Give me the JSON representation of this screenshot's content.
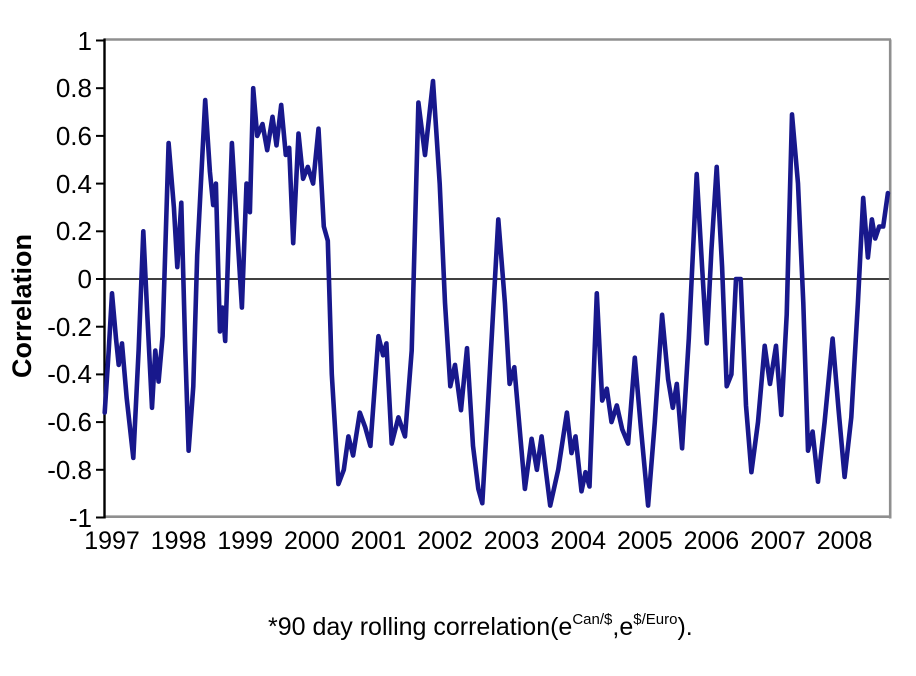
{
  "caption": {
    "part1": "*90 day rolling correlation(e",
    "sup1": "Can/$",
    "part2": ",e",
    "sup2": "$/Euro",
    "part3": ")."
  },
  "chart_data": {
    "type": "line",
    "title": "",
    "xlabel": "",
    "ylabel": "Correlation",
    "ylim": [
      -1,
      1
    ],
    "xlim_years": [
      1996.89,
      2008.68
    ],
    "grid": false,
    "zero_line": true,
    "legend": "none",
    "line_color": "#18188c",
    "border_color": "#8f8f8f",
    "axis_color": "#000000",
    "y_tick_labels": [
      "1",
      "0.8",
      "0.6",
      "0.4",
      "0.2",
      "0",
      "-0.2",
      "-0.4",
      "-0.6",
      "-0.8",
      "-1"
    ],
    "y_tick_values": [
      1,
      0.8,
      0.6,
      0.4,
      0.2,
      0,
      -0.2,
      -0.4,
      -0.6,
      -0.8,
      -1
    ],
    "x_tick_labels": [
      "1997",
      "1998",
      "1999",
      "2000",
      "2001",
      "2002",
      "2003",
      "2004",
      "2005",
      "2006",
      "2007",
      "2008"
    ],
    "x_tick_years": [
      1997,
      1998,
      1999,
      2000,
      2001,
      2002,
      2003,
      2004,
      2005,
      2006,
      2007,
      2008
    ],
    "series": [
      {
        "name": "90 day rolling correlation",
        "points": [
          [
            1996.89,
            -0.56
          ],
          [
            1996.95,
            -0.3
          ],
          [
            1997.0,
            -0.06
          ],
          [
            1997.06,
            -0.25
          ],
          [
            1997.1,
            -0.36
          ],
          [
            1997.15,
            -0.27
          ],
          [
            1997.22,
            -0.5
          ],
          [
            1997.32,
            -0.75
          ],
          [
            1997.4,
            -0.3
          ],
          [
            1997.47,
            0.2
          ],
          [
            1997.53,
            -0.15
          ],
          [
            1997.6,
            -0.54
          ],
          [
            1997.65,
            -0.3
          ],
          [
            1997.7,
            -0.43
          ],
          [
            1997.76,
            -0.24
          ],
          [
            1997.85,
            0.57
          ],
          [
            1997.93,
            0.3
          ],
          [
            1997.98,
            0.05
          ],
          [
            1998.04,
            0.32
          ],
          [
            1998.1,
            -0.3
          ],
          [
            1998.15,
            -0.72
          ],
          [
            1998.22,
            -0.45
          ],
          [
            1998.28,
            0.1
          ],
          [
            1998.4,
            0.75
          ],
          [
            1998.47,
            0.45
          ],
          [
            1998.52,
            0.31
          ],
          [
            1998.56,
            0.4
          ],
          [
            1998.62,
            -0.22
          ],
          [
            1998.66,
            -0.12
          ],
          [
            1998.7,
            -0.26
          ],
          [
            1998.8,
            0.57
          ],
          [
            1998.88,
            0.2
          ],
          [
            1998.95,
            -0.12
          ],
          [
            1999.02,
            0.4
          ],
          [
            1999.07,
            0.28
          ],
          [
            1999.12,
            0.8
          ],
          [
            1999.18,
            0.6
          ],
          [
            1999.26,
            0.65
          ],
          [
            1999.33,
            0.54
          ],
          [
            1999.41,
            0.68
          ],
          [
            1999.47,
            0.56
          ],
          [
            1999.54,
            0.73
          ],
          [
            1999.61,
            0.52
          ],
          [
            1999.66,
            0.55
          ],
          [
            1999.72,
            0.15
          ],
          [
            1999.8,
            0.61
          ],
          [
            1999.87,
            0.42
          ],
          [
            1999.94,
            0.47
          ],
          [
            2000.02,
            0.4
          ],
          [
            2000.1,
            0.63
          ],
          [
            2000.18,
            0.22
          ],
          [
            2000.24,
            0.16
          ],
          [
            2000.3,
            -0.4
          ],
          [
            2000.4,
            -0.86
          ],
          [
            2000.48,
            -0.8
          ],
          [
            2000.55,
            -0.66
          ],
          [
            2000.62,
            -0.74
          ],
          [
            2000.72,
            -0.56
          ],
          [
            2000.8,
            -0.62
          ],
          [
            2000.88,
            -0.7
          ],
          [
            2001.0,
            -0.24
          ],
          [
            2001.07,
            -0.32
          ],
          [
            2001.12,
            -0.27
          ],
          [
            2001.2,
            -0.69
          ],
          [
            2001.3,
            -0.58
          ],
          [
            2001.4,
            -0.66
          ],
          [
            2001.5,
            -0.3
          ],
          [
            2001.6,
            0.74
          ],
          [
            2001.7,
            0.52
          ],
          [
            2001.82,
            0.83
          ],
          [
            2001.92,
            0.4
          ],
          [
            2002.0,
            -0.1
          ],
          [
            2002.08,
            -0.45
          ],
          [
            2002.15,
            -0.36
          ],
          [
            2002.24,
            -0.55
          ],
          [
            2002.33,
            -0.29
          ],
          [
            2002.42,
            -0.7
          ],
          [
            2002.5,
            -0.88
          ],
          [
            2002.56,
            -0.94
          ],
          [
            2002.63,
            -0.6
          ],
          [
            2002.71,
            -0.2
          ],
          [
            2002.8,
            0.25
          ],
          [
            2002.9,
            -0.1
          ],
          [
            2002.97,
            -0.44
          ],
          [
            2003.04,
            -0.37
          ],
          [
            2003.2,
            -0.88
          ],
          [
            2003.3,
            -0.67
          ],
          [
            2003.38,
            -0.8
          ],
          [
            2003.45,
            -0.66
          ],
          [
            2003.58,
            -0.95
          ],
          [
            2003.7,
            -0.8
          ],
          [
            2003.83,
            -0.56
          ],
          [
            2003.9,
            -0.73
          ],
          [
            2003.96,
            -0.66
          ],
          [
            2004.05,
            -0.89
          ],
          [
            2004.11,
            -0.81
          ],
          [
            2004.17,
            -0.87
          ],
          [
            2004.28,
            -0.06
          ],
          [
            2004.36,
            -0.51
          ],
          [
            2004.43,
            -0.46
          ],
          [
            2004.5,
            -0.6
          ],
          [
            2004.58,
            -0.53
          ],
          [
            2004.66,
            -0.63
          ],
          [
            2004.75,
            -0.69
          ],
          [
            2004.85,
            -0.33
          ],
          [
            2004.94,
            -0.62
          ],
          [
            2005.05,
            -0.95
          ],
          [
            2005.15,
            -0.6
          ],
          [
            2005.26,
            -0.15
          ],
          [
            2005.35,
            -0.42
          ],
          [
            2005.42,
            -0.54
          ],
          [
            2005.48,
            -0.44
          ],
          [
            2005.56,
            -0.71
          ],
          [
            2005.66,
            -0.25
          ],
          [
            2005.78,
            0.44
          ],
          [
            2005.86,
            0.05
          ],
          [
            2005.93,
            -0.27
          ],
          [
            2006.0,
            0.12
          ],
          [
            2006.08,
            0.47
          ],
          [
            2006.16,
            0.05
          ],
          [
            2006.23,
            -0.45
          ],
          [
            2006.3,
            -0.4
          ],
          [
            2006.37,
            0.0
          ],
          [
            2006.44,
            0.0
          ],
          [
            2006.52,
            -0.53
          ],
          [
            2006.6,
            -0.81
          ],
          [
            2006.7,
            -0.6
          ],
          [
            2006.8,
            -0.28
          ],
          [
            2006.88,
            -0.44
          ],
          [
            2006.97,
            -0.28
          ],
          [
            2007.05,
            -0.57
          ],
          [
            2007.13,
            -0.15
          ],
          [
            2007.21,
            0.69
          ],
          [
            2007.3,
            0.4
          ],
          [
            2007.38,
            -0.1
          ],
          [
            2007.45,
            -0.72
          ],
          [
            2007.52,
            -0.64
          ],
          [
            2007.6,
            -0.85
          ],
          [
            2007.7,
            -0.6
          ],
          [
            2007.82,
            -0.25
          ],
          [
            2007.91,
            -0.55
          ],
          [
            2008.0,
            -0.83
          ],
          [
            2008.1,
            -0.58
          ],
          [
            2008.2,
            -0.1
          ],
          [
            2008.28,
            0.34
          ],
          [
            2008.35,
            0.09
          ],
          [
            2008.41,
            0.25
          ],
          [
            2008.46,
            0.17
          ],
          [
            2008.52,
            0.22
          ],
          [
            2008.58,
            0.22
          ],
          [
            2008.65,
            0.36
          ]
        ]
      }
    ]
  }
}
